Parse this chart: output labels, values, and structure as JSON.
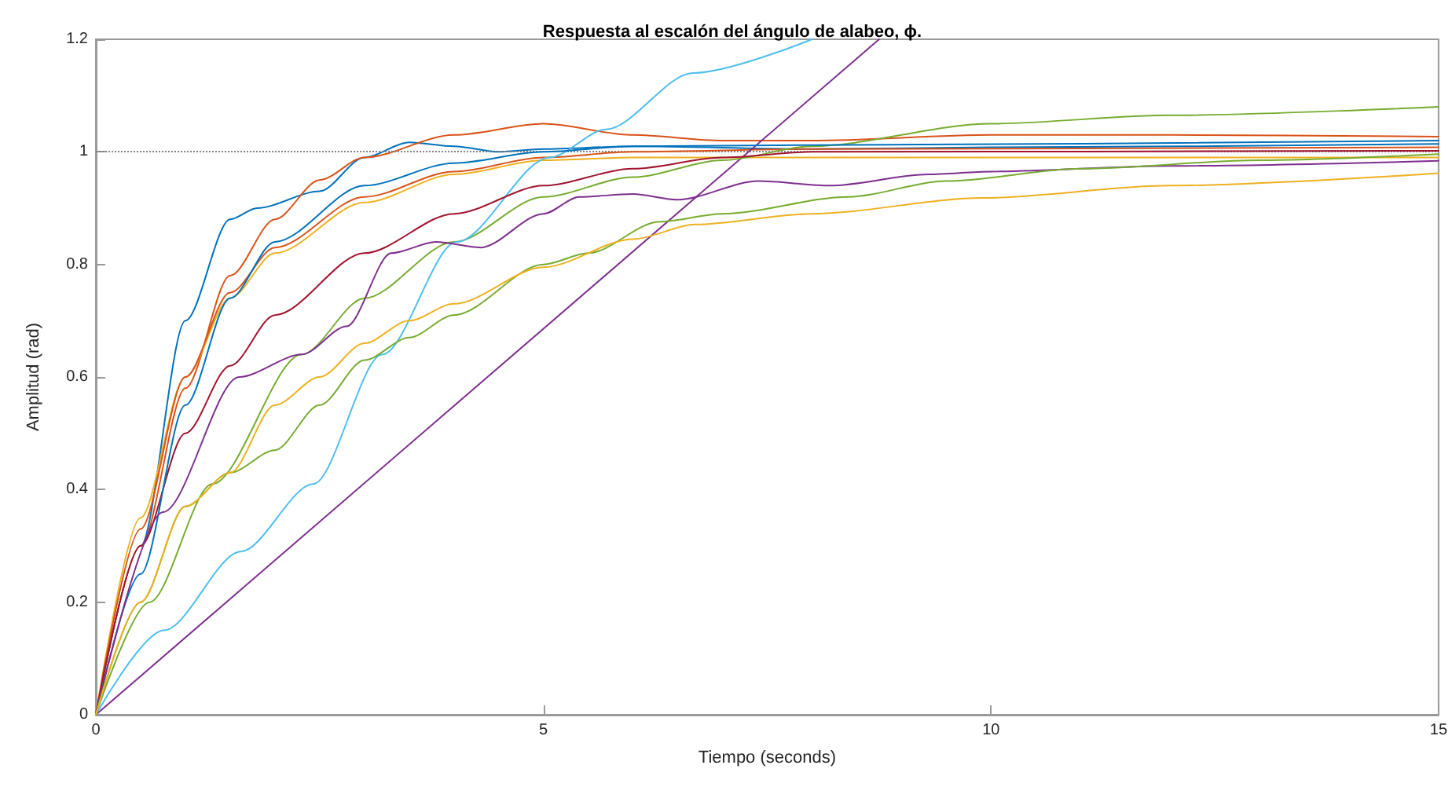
{
  "chart_data": {
    "type": "line",
    "title": "Respuesta al escalón del ángulo de alabeo, ϕ.",
    "xlabel": "Tiempo (seconds)",
    "ylabel": "Amplitud (rad)",
    "xlim": [
      0,
      15
    ],
    "ylim": [
      0,
      1.2
    ],
    "xticks": [
      0,
      5,
      10,
      15
    ],
    "yticks": [
      0,
      0.2,
      0.4,
      0.6,
      0.8,
      1,
      1.2
    ],
    "grid": false,
    "marker": "none",
    "line_style": "solid",
    "ref_lines": [
      {
        "axis": "y",
        "value": 1,
        "color": "#808080",
        "line_style": "dotted"
      }
    ],
    "series": [
      {
        "color": "#0072bd",
        "x": [
          0,
          0.5,
          1,
          1.5,
          1.8,
          2.5,
          3,
          3.5,
          4,
          4.5,
          5,
          6,
          8,
          10,
          15
        ],
        "values": [
          0,
          0.3,
          0.7,
          0.88,
          0.9,
          0.93,
          0.99,
          1.017,
          1.01,
          1.0,
          1.005,
          1.01,
          1.005,
          1.008,
          1.014
        ]
      },
      {
        "color": "#d95319",
        "x": [
          0,
          0.5,
          1,
          1.5,
          2,
          2.5,
          3,
          4,
          5,
          6,
          7,
          8,
          10,
          12,
          15
        ],
        "values": [
          0,
          0.3,
          0.58,
          0.78,
          0.88,
          0.95,
          0.99,
          1.03,
          1.05,
          1.03,
          1.02,
          1.02,
          1.03,
          1.03,
          1.027
        ]
      },
      {
        "color": "#edb120",
        "x": [
          0,
          0.5,
          1,
          1.5,
          2,
          3,
          4,
          5,
          6,
          8,
          15
        ],
        "values": [
          0,
          0.35,
          0.6,
          0.74,
          0.82,
          0.91,
          0.96,
          0.985,
          0.99,
          0.99,
          0.99
        ]
      },
      {
        "color": "#d95319",
        "x": [
          0,
          0.5,
          1,
          1.5,
          2,
          3,
          4,
          5,
          6,
          8,
          15
        ],
        "values": [
          0,
          0.33,
          0.6,
          0.75,
          0.83,
          0.92,
          0.965,
          0.99,
          1.0,
          1.005,
          1.008
        ]
      },
      {
        "color": "#7e2f8e",
        "x": [
          0,
          8.75
        ],
        "values": [
          0,
          1.2
        ]
      },
      {
        "color": "#77ac30",
        "x": [
          0,
          0.6,
          1.3,
          2.3,
          3,
          4,
          5,
          6,
          7,
          8,
          10,
          12,
          15
        ],
        "values": [
          0,
          0.2,
          0.41,
          0.64,
          0.74,
          0.84,
          0.92,
          0.955,
          0.985,
          1.01,
          1.05,
          1.065,
          1.08
        ]
      },
      {
        "color": "#4dbeee",
        "x": [
          0,
          0.76,
          1.62,
          2.43,
          3.2,
          4.03,
          5.07,
          5.7,
          6.67,
          8
        ],
        "values": [
          0,
          0.15,
          0.29,
          0.41,
          0.64,
          0.84,
          0.99,
          1.04,
          1.14,
          1.2
        ]
      },
      {
        "color": "#a2142f",
        "x": [
          0,
          0.5,
          1,
          1.5,
          2,
          3,
          4,
          5,
          6,
          7,
          8,
          15
        ],
        "values": [
          0,
          0.3,
          0.5,
          0.62,
          0.71,
          0.82,
          0.89,
          0.94,
          0.97,
          0.99,
          1.0,
          1.002
        ]
      },
      {
        "color": "#0072bd",
        "x": [
          0,
          0.5,
          1,
          1.5,
          2,
          3,
          4,
          5,
          6,
          8,
          15
        ],
        "values": [
          0,
          0.25,
          0.55,
          0.74,
          0.84,
          0.94,
          0.98,
          1.0,
          1.01,
          1.012,
          1.02
        ]
      },
      {
        "color": "#7e2f8e",
        "x": [
          0,
          0.75,
          1.6,
          2.3,
          2.8,
          3.3,
          3.8,
          4.3,
          5,
          5.4,
          6,
          6.5,
          7.4,
          8.2,
          9.3,
          10,
          12,
          15
        ],
        "values": [
          0,
          0.36,
          0.6,
          0.64,
          0.69,
          0.82,
          0.84,
          0.83,
          0.89,
          0.92,
          0.925,
          0.915,
          0.948,
          0.94,
          0.96,
          0.965,
          0.975,
          0.984
        ]
      },
      {
        "color": "#77ac30",
        "x": [
          0,
          0.5,
          1,
          1.5,
          2,
          2.5,
          3,
          3.5,
          4,
          5,
          5.5,
          6.3,
          7,
          8.4,
          9.5,
          11,
          13,
          15
        ],
        "values": [
          0,
          0.2,
          0.37,
          0.43,
          0.47,
          0.55,
          0.63,
          0.67,
          0.71,
          0.8,
          0.82,
          0.876,
          0.89,
          0.92,
          0.948,
          0.97,
          0.985,
          0.996
        ]
      },
      {
        "color": "#edb120",
        "x": [
          0,
          0.5,
          1,
          1.5,
          2,
          2.5,
          3,
          3.5,
          4,
          5,
          6,
          6.7,
          8,
          9.9,
          12,
          15
        ],
        "values": [
          0,
          0.2,
          0.37,
          0.43,
          0.55,
          0.6,
          0.66,
          0.7,
          0.73,
          0.795,
          0.845,
          0.871,
          0.89,
          0.918,
          0.94,
          0.962
        ]
      }
    ]
  }
}
